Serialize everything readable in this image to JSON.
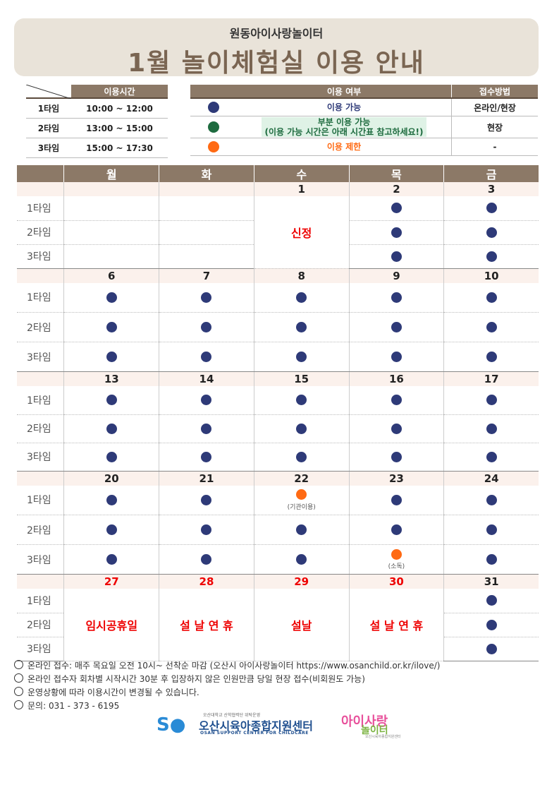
{
  "header": {
    "subtitle": "원동아이사랑놀이터",
    "title": "1월 놀이체험실 이용 안내"
  },
  "time_table": {
    "header": "이용시간",
    "rows": [
      {
        "label": "1타임",
        "time": "10:00 ~ 12:00"
      },
      {
        "label": "2타임",
        "time": "13:00 ~ 15:00"
      },
      {
        "label": "3타임",
        "time": "15:00 ~ 17:30"
      }
    ]
  },
  "availability": {
    "header_status": "이용 여부",
    "header_method": "접수방법",
    "rows": [
      {
        "color": "#2e3a78",
        "label": "이용 가능",
        "label2": "",
        "method": "온라인/현장"
      },
      {
        "color": "#1e6b3f",
        "label": "부분 이용 가능",
        "label2": "(이용 가능 시간은 아래 시간표 참고하세요!)",
        "method": "현장"
      },
      {
        "color": "#ff6a13",
        "label": "이용 제한",
        "label2": "",
        "method": "-"
      }
    ]
  },
  "calendar": {
    "weekdays": [
      "월",
      "화",
      "수",
      "목",
      "금"
    ],
    "slot_labels": [
      "1타임",
      "2타임",
      "3타임"
    ],
    "weeks": [
      {
        "dates": [
          "",
          "",
          "1",
          "2",
          "3"
        ],
        "red": [
          false,
          false,
          false,
          false,
          false
        ],
        "cells": [
          [
            "",
            "",
            "",
            "b",
            "b"
          ],
          [
            "",
            "",
            "",
            "b",
            "b"
          ],
          [
            "",
            "",
            "",
            "b",
            "b"
          ]
        ],
        "merged": {
          "2": "신정"
        }
      },
      {
        "dates": [
          "6",
          "7",
          "8",
          "9",
          "10"
        ],
        "red": [
          false,
          false,
          false,
          false,
          false
        ],
        "cells": [
          [
            "b",
            "b",
            "b",
            "b",
            "b"
          ],
          [
            "b",
            "b",
            "b",
            "b",
            "b"
          ],
          [
            "b",
            "b",
            "b",
            "b",
            "b"
          ]
        ]
      },
      {
        "dates": [
          "13",
          "14",
          "15",
          "16",
          "17"
        ],
        "red": [
          false,
          false,
          false,
          false,
          false
        ],
        "cells": [
          [
            "b",
            "b",
            "b",
            "b",
            "b"
          ],
          [
            "b",
            "b",
            "b",
            "b",
            "b"
          ],
          [
            "b",
            "b",
            "b",
            "b",
            "b"
          ]
        ]
      },
      {
        "dates": [
          "20",
          "21",
          "22",
          "23",
          "24"
        ],
        "red": [
          false,
          false,
          false,
          false,
          false
        ],
        "cells": [
          [
            "b",
            "b",
            "o:(기관이용)",
            "b",
            "b"
          ],
          [
            "b",
            "b",
            "b",
            "b",
            "b"
          ],
          [
            "b",
            "b",
            "b",
            "o:(소독)",
            "b"
          ]
        ]
      },
      {
        "dates": [
          "27",
          "28",
          "29",
          "30",
          "31"
        ],
        "red": [
          true,
          true,
          true,
          true,
          false
        ],
        "cells": [
          [
            "",
            "",
            "",
            "",
            "b"
          ],
          [
            "",
            "",
            "",
            "",
            "b"
          ],
          [
            "",
            "",
            "",
            "",
            "b"
          ]
        ],
        "merged": {
          "0": "임시공휴일",
          "1": "설 날 연 휴",
          "2": "설날",
          "3": "설 날 연 휴"
        }
      }
    ]
  },
  "notes": [
    "온라인 접수: 매주 목요일 오전 10시~ 선착순 마감 (오산시 아이사랑놀이터 https://www.osanchild.or.kr/ilove/)",
    "온라인 접수자 회차별 시작시간 30분 후 입장하지 않은 인원만큼 당일 현장 접수(비회원도 가능)",
    "운영상황에 따라 이용시간이 변경될 수 있습니다.",
    "문의: 031 - 373 - 6195"
  ],
  "logos": {
    "center_tiny": "오산대학교 산학협력단 위탁운영",
    "center_main": "오산시육아종합지원센터",
    "center_eng": "OSAN SUPPORT CENTER FOR CHILDCARE",
    "play_top": "아이사랑",
    "play_bottom": "놀이터",
    "play_tiny": "오산시육아종합지원센터"
  },
  "colors": {
    "blue": "#2e3a78",
    "orange": "#ff6a13",
    "green": "#1e6b3f",
    "brown": "#8c7967"
  }
}
